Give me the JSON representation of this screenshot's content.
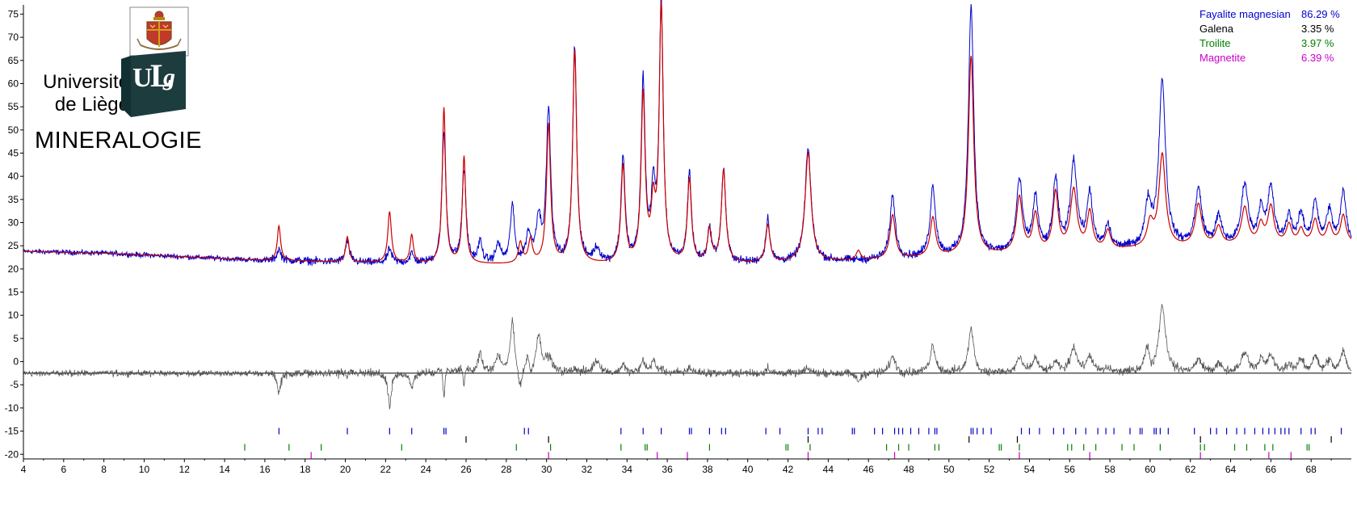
{
  "logo": {
    "line1": "Université",
    "line2": "de Liège",
    "monogram": "ULg",
    "subtitle": "MINERALOGIE",
    "emblem": "coat-of-arms-crest",
    "brand_color": "#1d3c3e"
  },
  "legend": [
    {
      "name": "Fayalite magnesian",
      "percent": "86.29 %",
      "color": "#0000cc"
    },
    {
      "name": "Galena",
      "percent": "3.35 %",
      "color": "#000000"
    },
    {
      "name": "Troilite",
      "percent": "3.97 %",
      "color": "#008000"
    },
    {
      "name": "Magnetite",
      "percent": "6.39 %",
      "color": "#cc00cc"
    }
  ],
  "colors": {
    "observed": "#0000cc",
    "calculated": "#cc0000",
    "difference": "#555555",
    "baseline": "#000000"
  },
  "chart_data": {
    "type": "line",
    "xlim": [
      4,
      70
    ],
    "ylim": [
      -21,
      77
    ],
    "x_ticks": [
      4,
      6,
      8,
      10,
      12,
      14,
      16,
      18,
      20,
      22,
      24,
      26,
      28,
      30,
      32,
      34,
      36,
      38,
      40,
      42,
      44,
      46,
      48,
      50,
      52,
      54,
      56,
      58,
      60,
      62,
      64,
      66,
      68
    ],
    "y_ticks": [
      -20,
      -15,
      -10,
      -5,
      0,
      5,
      10,
      15,
      20,
      25,
      30,
      35,
      40,
      45,
      50,
      55,
      60,
      65,
      70,
      75
    ],
    "grid": false,
    "legend_position": "top-right",
    "background_points": [
      [
        4,
        23.8
      ],
      [
        8,
        23.4
      ],
      [
        12,
        22.6
      ],
      [
        16,
        21.8
      ],
      [
        18,
        21.7
      ],
      [
        20,
        21.4
      ],
      [
        24,
        21.1
      ],
      [
        26,
        21.0
      ],
      [
        28,
        20.9
      ],
      [
        30,
        20.9
      ],
      [
        34,
        20.8
      ],
      [
        38,
        21.0
      ],
      [
        42,
        21.3
      ],
      [
        46,
        21.8
      ],
      [
        50,
        22.5
      ],
      [
        54,
        23.3
      ],
      [
        58,
        24.0
      ],
      [
        62,
        24.6
      ],
      [
        66,
        25.2
      ],
      [
        70,
        25.5
      ]
    ],
    "calculated_peaks": [
      {
        "x": 16.7,
        "h": 7.5,
        "w": 0.1
      },
      {
        "x": 20.1,
        "h": 5.5,
        "w": 0.1
      },
      {
        "x": 22.2,
        "h": 11.0,
        "w": 0.11
      },
      {
        "x": 23.3,
        "h": 6.0,
        "w": 0.1
      },
      {
        "x": 24.9,
        "h": 33.5,
        "w": 0.1
      },
      {
        "x": 25.9,
        "h": 23.0,
        "w": 0.1
      },
      {
        "x": 28.7,
        "h": 4.5,
        "w": 0.12
      },
      {
        "x": 29.2,
        "h": 5.0,
        "w": 0.12
      },
      {
        "x": 30.1,
        "h": 30.0,
        "w": 0.12
      },
      {
        "x": 31.4,
        "h": 46.0,
        "w": 0.12
      },
      {
        "x": 33.8,
        "h": 21.0,
        "w": 0.12
      },
      {
        "x": 34.8,
        "h": 36.0,
        "w": 0.12
      },
      {
        "x": 35.3,
        "h": 11.0,
        "w": 0.12
      },
      {
        "x": 35.7,
        "h": 55.0,
        "w": 0.12
      },
      {
        "x": 37.1,
        "h": 18.0,
        "w": 0.12
      },
      {
        "x": 38.1,
        "h": 7.0,
        "w": 0.12
      },
      {
        "x": 38.8,
        "h": 20.0,
        "w": 0.13
      },
      {
        "x": 41.0,
        "h": 8.0,
        "w": 0.13
      },
      {
        "x": 43.0,
        "h": 23.5,
        "w": 0.18
      },
      {
        "x": 45.5,
        "h": 2.0,
        "w": 0.13
      },
      {
        "x": 47.2,
        "h": 9.5,
        "w": 0.16
      },
      {
        "x": 49.2,
        "h": 8.5,
        "w": 0.16
      },
      {
        "x": 51.1,
        "h": 43.0,
        "w": 0.16
      },
      {
        "x": 53.5,
        "h": 12.0,
        "w": 0.18
      },
      {
        "x": 54.3,
        "h": 8.0,
        "w": 0.16
      },
      {
        "x": 55.3,
        "h": 12.5,
        "w": 0.16
      },
      {
        "x": 56.2,
        "h": 13.0,
        "w": 0.2
      },
      {
        "x": 57.0,
        "h": 8.0,
        "w": 0.16
      },
      {
        "x": 57.9,
        "h": 4.0,
        "w": 0.16
      },
      {
        "x": 60.0,
        "h": 5.0,
        "w": 0.18
      },
      {
        "x": 60.6,
        "h": 20.0,
        "w": 0.2
      },
      {
        "x": 62.4,
        "h": 9.0,
        "w": 0.2
      },
      {
        "x": 63.4,
        "h": 4.0,
        "w": 0.18
      },
      {
        "x": 64.7,
        "h": 8.0,
        "w": 0.2
      },
      {
        "x": 65.5,
        "h": 4.0,
        "w": 0.16
      },
      {
        "x": 66.0,
        "h": 8.0,
        "w": 0.18
      },
      {
        "x": 66.9,
        "h": 4.0,
        "w": 0.16
      },
      {
        "x": 67.5,
        "h": 3.0,
        "w": 0.16
      },
      {
        "x": 68.2,
        "h": 5.0,
        "w": 0.16
      },
      {
        "x": 68.9,
        "h": 4.0,
        "w": 0.16
      },
      {
        "x": 69.6,
        "h": 6.0,
        "w": 0.16
      }
    ],
    "observed_peaks": [
      {
        "x": 16.7,
        "h": 2.5,
        "w": 0.12
      },
      {
        "x": 20.1,
        "h": 4.5,
        "w": 0.12
      },
      {
        "x": 22.2,
        "h": 3.0,
        "w": 0.12
      },
      {
        "x": 23.3,
        "h": 2.0,
        "w": 0.12
      },
      {
        "x": 24.9,
        "h": 28.0,
        "w": 0.12
      },
      {
        "x": 25.9,
        "h": 20.0,
        "w": 0.12
      },
      {
        "x": 26.7,
        "h": 4.5,
        "w": 0.12
      },
      {
        "x": 27.6,
        "h": 4.0,
        "w": 0.15
      },
      {
        "x": 28.3,
        "h": 12.5,
        "w": 0.12
      },
      {
        "x": 29.1,
        "h": 6.0,
        "w": 0.15
      },
      {
        "x": 29.6,
        "h": 9.0,
        "w": 0.15
      },
      {
        "x": 30.1,
        "h": 33.0,
        "w": 0.13
      },
      {
        "x": 31.4,
        "h": 47.0,
        "w": 0.12
      },
      {
        "x": 32.5,
        "h": 3.0,
        "w": 0.2
      },
      {
        "x": 33.8,
        "h": 23.0,
        "w": 0.12
      },
      {
        "x": 34.8,
        "h": 39.0,
        "w": 0.12
      },
      {
        "x": 35.3,
        "h": 14.0,
        "w": 0.12
      },
      {
        "x": 35.7,
        "h": 56.0,
        "w": 0.12
      },
      {
        "x": 37.1,
        "h": 19.5,
        "w": 0.12
      },
      {
        "x": 38.1,
        "h": 7.0,
        "w": 0.12
      },
      {
        "x": 38.8,
        "h": 20.0,
        "w": 0.13
      },
      {
        "x": 41.0,
        "h": 9.5,
        "w": 0.12
      },
      {
        "x": 43.0,
        "h": 24.5,
        "w": 0.18
      },
      {
        "x": 47.2,
        "h": 13.5,
        "w": 0.16
      },
      {
        "x": 49.2,
        "h": 15.0,
        "w": 0.16
      },
      {
        "x": 51.1,
        "h": 53.5,
        "w": 0.16
      },
      {
        "x": 53.5,
        "h": 15.5,
        "w": 0.18
      },
      {
        "x": 54.3,
        "h": 11.5,
        "w": 0.16
      },
      {
        "x": 55.3,
        "h": 15.0,
        "w": 0.16
      },
      {
        "x": 56.2,
        "h": 19.0,
        "w": 0.2
      },
      {
        "x": 57.0,
        "h": 12.0,
        "w": 0.16
      },
      {
        "x": 57.9,
        "h": 5.0,
        "w": 0.16
      },
      {
        "x": 59.9,
        "h": 9.0,
        "w": 0.18
      },
      {
        "x": 60.6,
        "h": 36.0,
        "w": 0.2
      },
      {
        "x": 62.4,
        "h": 12.0,
        "w": 0.2
      },
      {
        "x": 63.4,
        "h": 6.0,
        "w": 0.18
      },
      {
        "x": 64.7,
        "h": 13.0,
        "w": 0.2
      },
      {
        "x": 65.5,
        "h": 7.0,
        "w": 0.16
      },
      {
        "x": 66.0,
        "h": 12.0,
        "w": 0.18
      },
      {
        "x": 66.9,
        "h": 6.0,
        "w": 0.16
      },
      {
        "x": 67.5,
        "h": 6.0,
        "w": 0.16
      },
      {
        "x": 68.2,
        "h": 9.0,
        "w": 0.16
      },
      {
        "x": 68.9,
        "h": 7.0,
        "w": 0.16
      },
      {
        "x": 69.6,
        "h": 11.0,
        "w": 0.16
      }
    ],
    "difference_offset": -2.5,
    "reflection_ticks": {
      "Fayalite magnesian": {
        "y": -15.0,
        "x": [
          16.7,
          20.1,
          22.2,
          23.3,
          24.9,
          25.0,
          28.9,
          29.1,
          33.7,
          34.8,
          35.7,
          37.1,
          37.2,
          38.1,
          38.7,
          38.9,
          40.9,
          41.6,
          43.0,
          43.5,
          43.7,
          45.2,
          45.3,
          46.3,
          46.7,
          47.3,
          47.5,
          47.7,
          48.1,
          48.5,
          49.0,
          49.3,
          49.4,
          51.1,
          51.2,
          51.4,
          51.7,
          52.1,
          53.6,
          54.0,
          54.5,
          55.2,
          55.7,
          56.3,
          56.8,
          57.4,
          57.8,
          58.2,
          59.0,
          59.5,
          59.6,
          60.2,
          60.3,
          60.5,
          60.9,
          62.2,
          63.0,
          63.3,
          63.8,
          64.3,
          64.7,
          65.2,
          65.6,
          65.9,
          66.2,
          66.5,
          66.7,
          66.9,
          67.5,
          68.0,
          68.2,
          69.5
        ]
      },
      "Galena": {
        "y": -16.8,
        "x": [
          26.0,
          30.1,
          43.0,
          51.0,
          53.4,
          62.5,
          69.0
        ]
      },
      "Troilite": {
        "y": -18.5,
        "x": [
          15.0,
          17.2,
          18.8,
          22.8,
          28.5,
          30.2,
          33.7,
          34.9,
          35.0,
          38.1,
          41.9,
          42.0,
          43.1,
          46.9,
          47.5,
          48.0,
          49.3,
          49.5,
          52.5,
          52.6,
          53.5,
          55.9,
          56.1,
          56.7,
          57.3,
          58.6,
          59.2,
          60.5,
          62.5,
          62.7,
          64.2,
          64.8,
          65.7,
          66.1,
          67.8,
          67.9
        ]
      },
      "Magnetite": {
        "y": -20.2,
        "x": [
          18.3,
          30.1,
          35.5,
          37.0,
          43.0,
          47.3,
          53.5,
          57.0,
          62.5,
          65.9,
          67.0
        ]
      }
    },
    "title": "",
    "xlabel": "",
    "ylabel": ""
  }
}
